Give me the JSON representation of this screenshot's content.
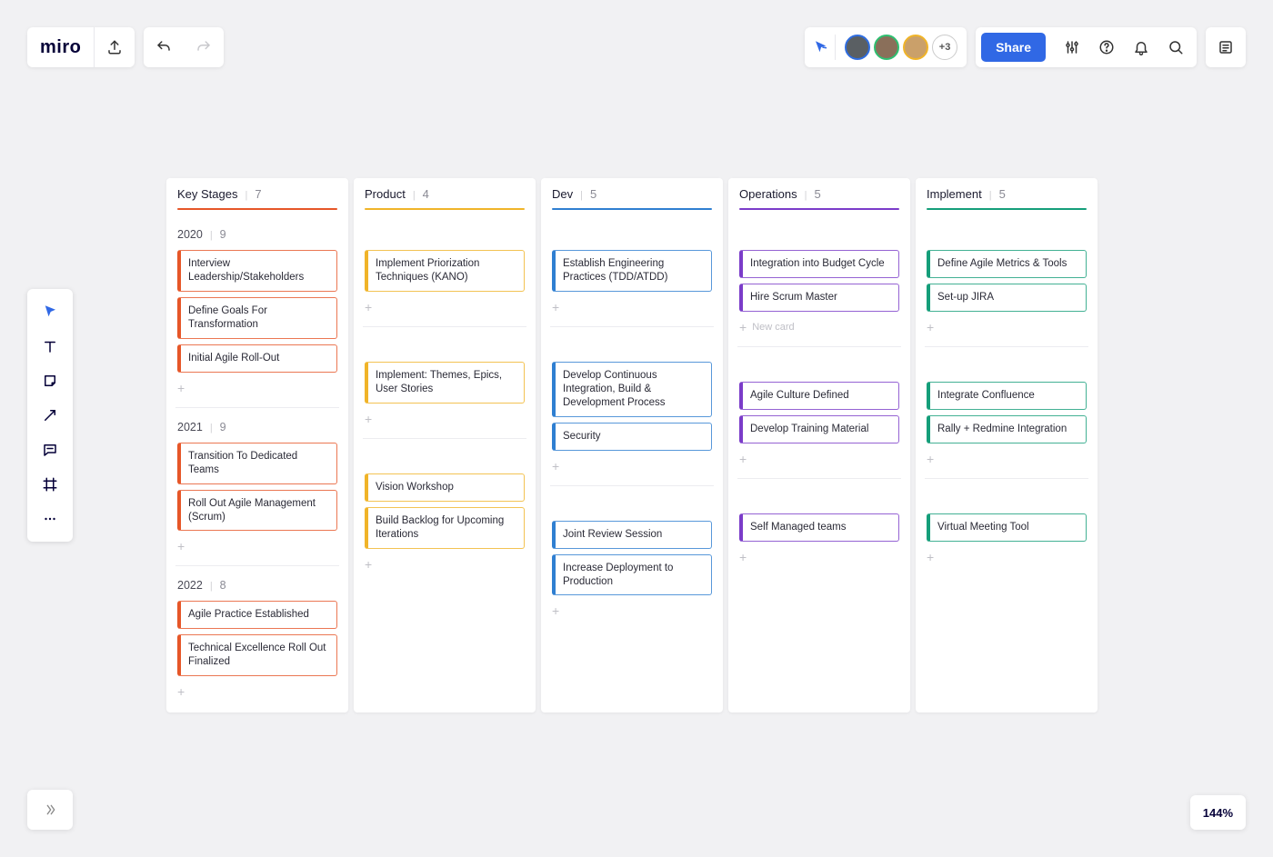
{
  "topbar": {
    "logo_text": "miro",
    "share_label": "Share",
    "overflow_count": "+3",
    "avatars": [
      {
        "border": "#2f6de0",
        "bg": "#5a5f63"
      },
      {
        "border": "#2fbf71",
        "bg": "#8a6f5a"
      },
      {
        "border": "#f0b429",
        "bg": "#caa06a"
      }
    ]
  },
  "zoom": {
    "level": "144%"
  },
  "columns": [
    {
      "title": "Key Stages",
      "count": "7",
      "color": "#e65628"
    },
    {
      "title": "Product",
      "count": "4",
      "color": "#f0b429"
    },
    {
      "title": "Dev",
      "count": "5",
      "color": "#2f7fd1"
    },
    {
      "title": "Operations",
      "count": "5",
      "color": "#7b3cc9"
    },
    {
      "title": "Implement",
      "count": "5",
      "color": "#159e7a"
    }
  ],
  "swimlanes": [
    {
      "year": "2020",
      "count": "9",
      "cells": [
        {
          "cards": [
            "Interview Leadership/Stakeholders",
            "Define Goals For Transformation",
            "Initial Agile Roll-Out"
          ],
          "show_new_label": false
        },
        {
          "cards": [
            "Implement Priorization Techniques (KANO)"
          ],
          "show_new_label": false
        },
        {
          "cards": [
            "Establish Engineering Practices (TDD/ATDD)"
          ],
          "show_new_label": false
        },
        {
          "cards": [
            "Integration into Budget Cycle",
            "Hire Scrum Master"
          ],
          "show_new_label": true
        },
        {
          "cards": [
            "Define Agile Metrics & Tools",
            "Set-up JIRA"
          ],
          "show_new_label": false
        }
      ]
    },
    {
      "year": "2021",
      "count": "9",
      "cells": [
        {
          "cards": [
            "Transition To Dedicated Teams",
            "Roll Out Agile Management (Scrum)"
          ],
          "show_new_label": false
        },
        {
          "cards": [
            "Implement: Themes, Epics, User Stories"
          ],
          "show_new_label": false
        },
        {
          "cards": [
            "Develop Continuous Integration, Build & Development Process",
            "Security"
          ],
          "show_new_label": false
        },
        {
          "cards": [
            "Agile Culture Defined",
            "Develop Training Material"
          ],
          "show_new_label": false
        },
        {
          "cards": [
            "Integrate Confluence",
            "Rally + Redmine Integration"
          ],
          "show_new_label": false
        }
      ]
    },
    {
      "year": "2022",
      "count": "8",
      "cells": [
        {
          "cards": [
            "Agile Practice Established",
            "Technical Excellence Roll Out Finalized"
          ],
          "show_new_label": false
        },
        {
          "cards": [
            "Vision Workshop",
            "Build Backlog for Upcoming Iterations"
          ],
          "show_new_label": false
        },
        {
          "cards": [
            "Joint Review Session",
            "Increase Deployment to Production"
          ],
          "show_new_label": false
        },
        {
          "cards": [
            "Self Managed teams"
          ],
          "show_new_label": false
        },
        {
          "cards": [
            "Virtual Meeting Tool"
          ],
          "show_new_label": false
        }
      ]
    }
  ],
  "new_card_label": "New card",
  "card_border_alpha_hex": "cc"
}
